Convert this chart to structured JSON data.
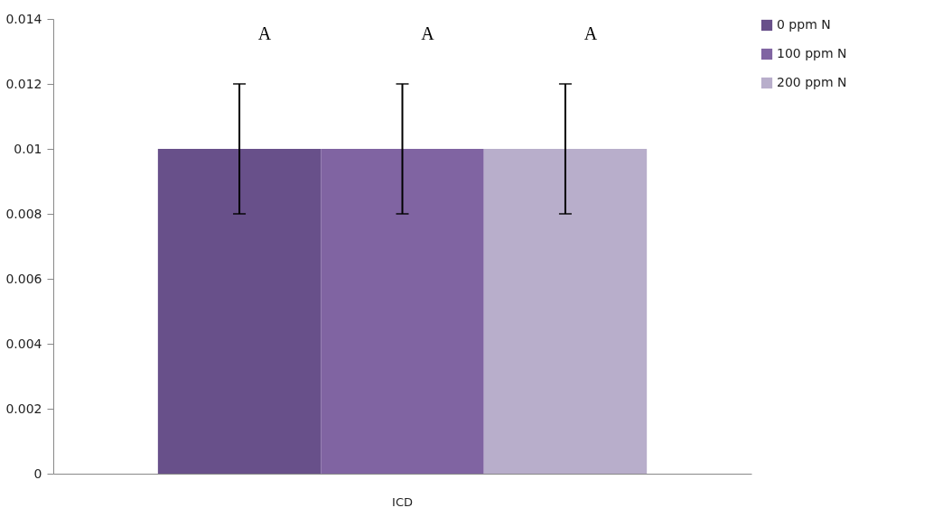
{
  "chart_data": {
    "type": "bar",
    "categories": [
      "ICD"
    ],
    "series": [
      {
        "name": "0 ppm N",
        "color": "#68508a",
        "values": [
          0.01
        ],
        "errors": [
          0.002
        ]
      },
      {
        "name": "100 ppm N",
        "color": "#8064a2",
        "values": [
          0.01
        ],
        "errors": [
          0.002
        ]
      },
      {
        "name": "200 ppm N",
        "color": "#b8aecb",
        "values": [
          0.01
        ],
        "errors": [
          0.002
        ]
      }
    ],
    "ylim": [
      0,
      0.014
    ],
    "yticks": [
      0,
      0.002,
      0.004,
      0.006,
      0.008,
      0.01,
      0.012,
      0.014
    ],
    "annotations": [
      "A",
      "A",
      "A"
    ],
    "grid": false,
    "legend": "top right"
  }
}
